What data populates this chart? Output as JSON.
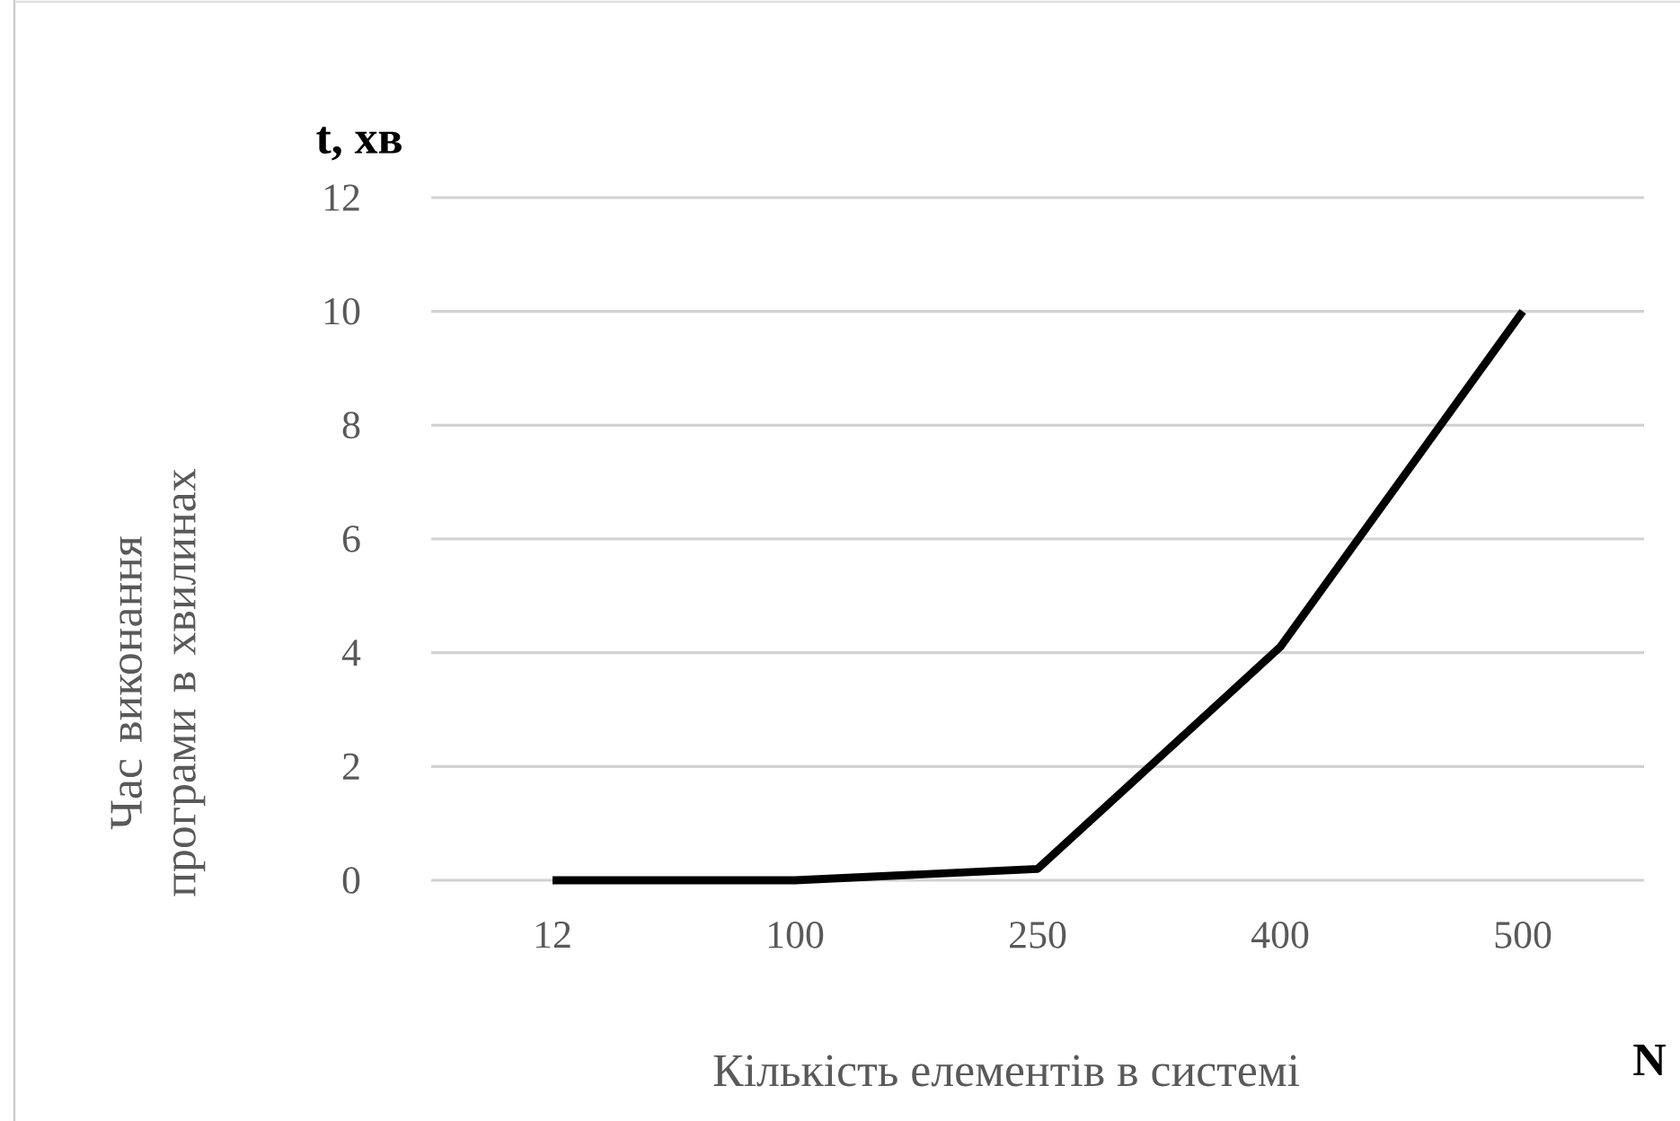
{
  "chart_data": {
    "type": "line",
    "xlabel": "Кількість елементів в системі",
    "ylabel": "Час виконання програми в хвилинах",
    "categories": [
      "12",
      "100",
      "250",
      "400",
      "500"
    ],
    "series": [
      {
        "color": "#000000",
        "values": [
          0,
          0,
          0.2,
          4.1,
          10
        ]
      }
    ],
    "ylim": [
      0,
      12
    ],
    "yticks": [
      0,
      2,
      4,
      6,
      8,
      10,
      12
    ],
    "grid": "y",
    "marker": "none",
    "line_style": "solid",
    "annotations": [
      "t, хв",
      "N"
    ]
  }
}
